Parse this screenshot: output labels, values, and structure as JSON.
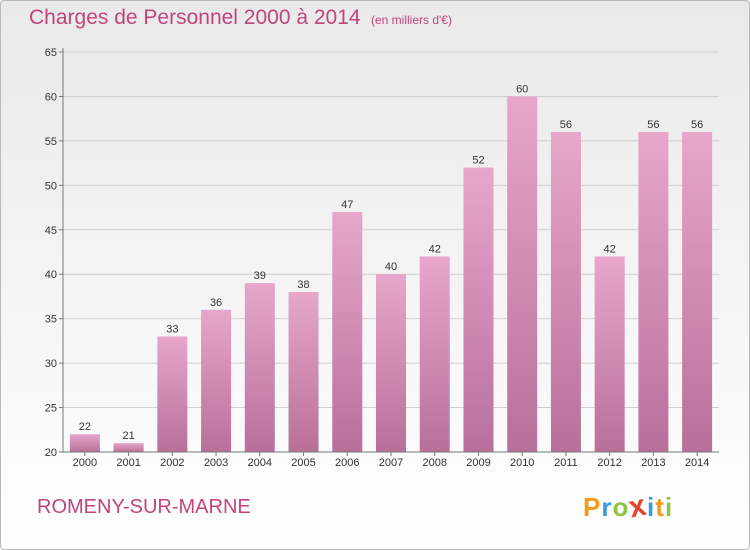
{
  "header": {
    "title": "Charges de Personnel 2000 à 2014",
    "subtitle": "(en milliers d'€)"
  },
  "footer": {
    "town": "ROMENY-SUR-MARNE",
    "logo_text": "Proxiti",
    "logo_letters": [
      {
        "ch": "P",
        "color": "#f39a1f"
      },
      {
        "ch": "r",
        "color": "#3a9bd8"
      },
      {
        "ch": "o",
        "color": "#8cc63f"
      },
      {
        "ch": "x",
        "color": "#e8442b"
      },
      {
        "ch": "i",
        "color": "#3a9bd8"
      },
      {
        "ch": "t",
        "color": "#f39a1f"
      },
      {
        "ch": "i",
        "color": "#8cc63f"
      }
    ]
  },
  "colors": {
    "bar_top": "#e8a6cc",
    "bar_bottom": "#b8709b",
    "accent": "#c2447d",
    "grid": "#cfcfcf"
  },
  "chart_data": {
    "type": "bar",
    "title": "Charges de Personnel 2000 à 2014",
    "subtitle": "(en milliers d'€)",
    "categories": [
      "2000",
      "2001",
      "2002",
      "2003",
      "2004",
      "2005",
      "2006",
      "2007",
      "2008",
      "2009",
      "2010",
      "2011",
      "2012",
      "2013",
      "2014"
    ],
    "values": [
      22,
      21,
      33,
      36,
      39,
      38,
      47,
      40,
      42,
      52,
      60,
      56,
      42,
      56,
      56
    ],
    "ylim": [
      20,
      65
    ],
    "yticks": [
      20,
      25,
      30,
      35,
      40,
      45,
      50,
      55,
      60,
      65
    ],
    "grid": true,
    "data_labels": true
  }
}
